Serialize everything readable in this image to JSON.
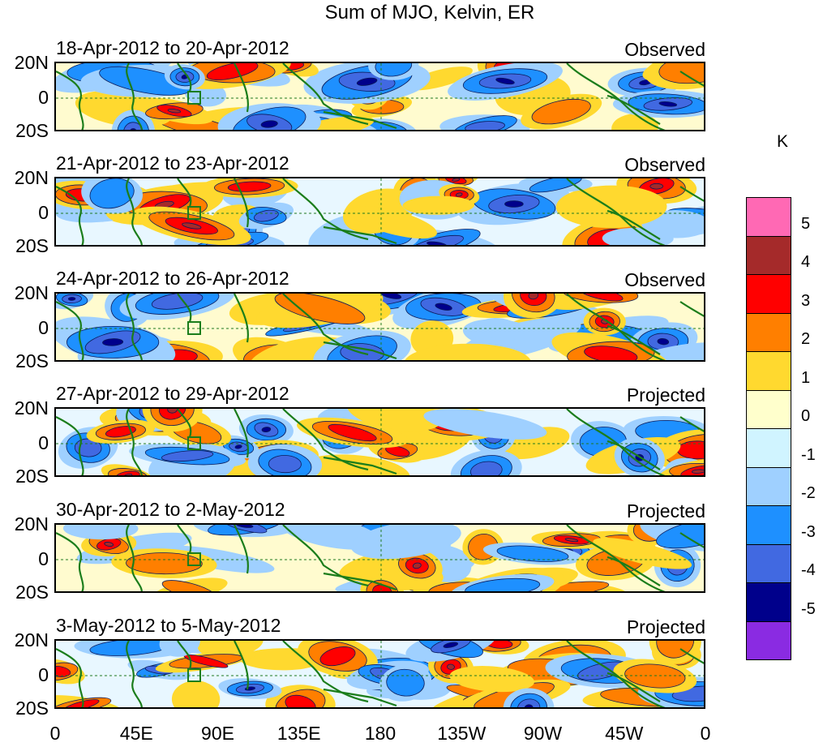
{
  "title": "Sum of MJO, Kelvin, ER",
  "panels": [
    {
      "dates": "18-Apr-2012 to 20-Apr-2012",
      "status": "Observed"
    },
    {
      "dates": "21-Apr-2012 to 23-Apr-2012",
      "status": "Observed"
    },
    {
      "dates": "24-Apr-2012 to 26-Apr-2012",
      "status": "Observed"
    },
    {
      "dates": "27-Apr-2012 to 29-Apr-2012",
      "status": "Projected"
    },
    {
      "dates": "30-Apr-2012 to 2-May-2012",
      "status": "Projected"
    },
    {
      "dates": "3-May-2012 to 5-May-2012",
      "status": "Projected"
    }
  ],
  "lat_labels": [
    "20N",
    "0",
    "20S"
  ],
  "lon_labels": [
    "0",
    "45E",
    "90E",
    "135E",
    "180",
    "135W",
    "90W",
    "45W",
    "0"
  ],
  "colorbar": {
    "unit": "K",
    "tick_labels": [
      "5",
      "4",
      "3",
      "2",
      "1",
      "0",
      "-1",
      "-2",
      "-3",
      "-4",
      "-5"
    ],
    "colors": [
      "#ff69b4",
      "#a52a2a",
      "#ff0000",
      "#ff7f00",
      "#ffd92f",
      "#ffffcc",
      "#d0f4ff",
      "#9fd0ff",
      "#1e90ff",
      "#4169e1",
      "#00008b",
      "#8a2be2"
    ]
  }
}
